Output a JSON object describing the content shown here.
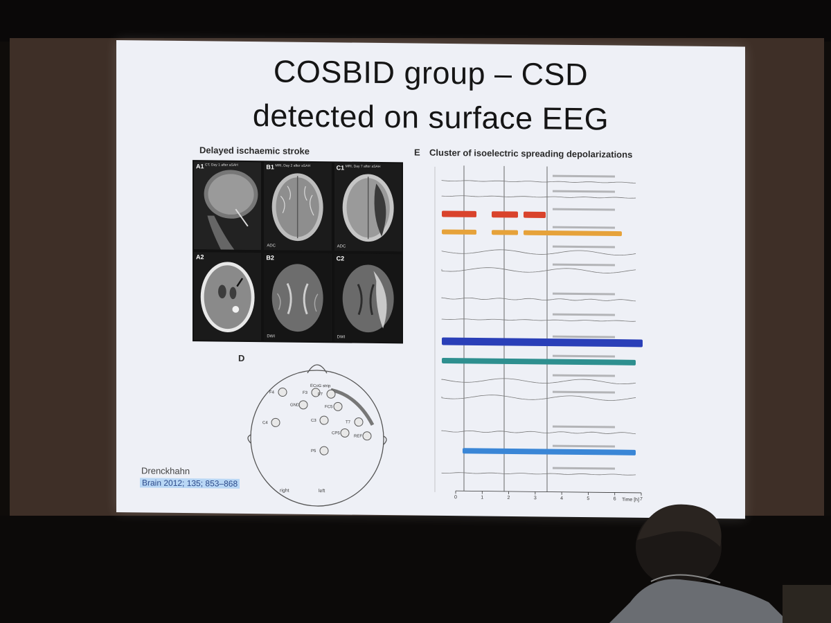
{
  "slide": {
    "title_line1": "COSBID group – CSD",
    "title_line2": "detected on surface EEG",
    "left_panel_title": "Delayed ischaemic stroke",
    "right_panel_letter": "E",
    "right_panel_title": "Cluster of isoelectric spreading depolarizations",
    "head_panel_letter": "D",
    "author": "Drenckhahn",
    "citation": "Brain 2012; 135; 853–868"
  },
  "scans": [
    {
      "label": "A1",
      "caption": "CT, Day 1 after aSAH",
      "tag": ""
    },
    {
      "label": "B1",
      "caption": "MRI, Day 2 after aSAH",
      "tag": "ADC"
    },
    {
      "label": "C1",
      "caption": "MRI, Day 7 after aSAH",
      "tag": "ADC"
    },
    {
      "label": "A2",
      "caption": "",
      "tag": ""
    },
    {
      "label": "B2",
      "caption": "",
      "tag": "DWI"
    },
    {
      "label": "C2",
      "caption": "",
      "tag": "DWI"
    }
  ],
  "head": {
    "strip_label": "ECoG strip",
    "electrodes": [
      "F4",
      "F3",
      "F7",
      "GND",
      "FC5",
      "C4",
      "C3",
      "T7",
      "CP5",
      "REF",
      "P5"
    ],
    "right_label": "right",
    "left_label": "left"
  },
  "eeg": {
    "time_label": "Time [h]",
    "time_ticks": [
      "0",
      "1",
      "2",
      "3",
      "4",
      "5",
      "6",
      "7"
    ],
    "colors": {
      "red": "#d9432c",
      "orange": "#e6a23a",
      "blue": "#2a3fb8",
      "teal": "#2e8f8f",
      "lightblue": "#3a86d6",
      "grey": "#777777"
    }
  }
}
